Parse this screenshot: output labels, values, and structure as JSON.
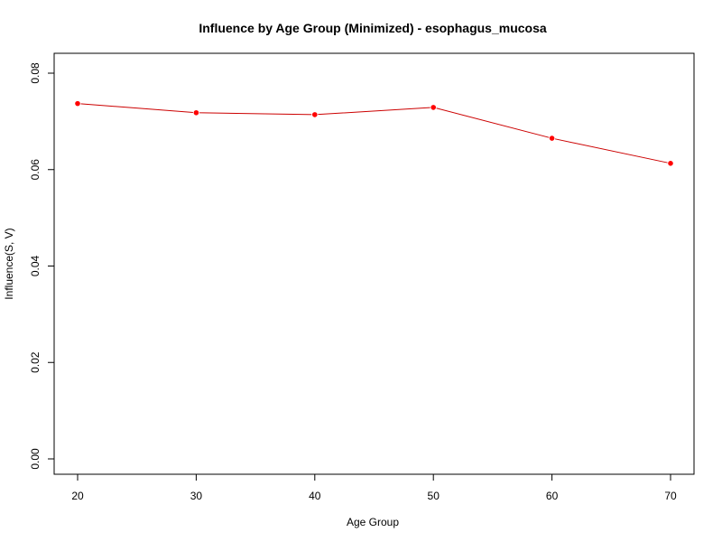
{
  "chart_data": {
    "type": "line",
    "title": "Influence by Age Group (Minimized) - esophagus_mucosa",
    "xlabel": "Age Group",
    "ylabel": "Influence(S, V)",
    "x": [
      20,
      30,
      40,
      50,
      60,
      70
    ],
    "series": [
      {
        "values": [
          0.0737,
          0.0718,
          0.0714,
          0.0729,
          0.0665,
          0.0613
        ],
        "color": "#cc0000",
        "marker_color": "#ff0000"
      }
    ],
    "xlim": [
      20,
      70
    ],
    "ylim": [
      0,
      0.08
    ],
    "xticks": [
      "20",
      "30",
      "40",
      "50",
      "60",
      "70"
    ],
    "yticks": [
      "0.00",
      "0.02",
      "0.04",
      "0.06",
      "0.08"
    ],
    "grid": false,
    "legend": "none"
  }
}
